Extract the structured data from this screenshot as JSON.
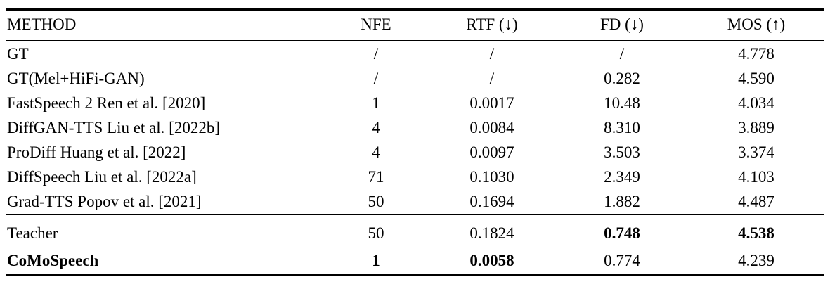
{
  "document": {
    "background_color": "#ffffff",
    "text_color": "#000000",
    "rule_color": "#000000"
  },
  "table": {
    "headers": [
      "METHOD",
      "NFE",
      "RTF (↓)",
      "FD (↓)",
      "MOS (↑)"
    ],
    "rows": [
      {
        "method": "GT",
        "nfe": "/",
        "rtf": "/",
        "fd": "/",
        "mos": "4.778",
        "bold": []
      },
      {
        "method": "GT(Mel+HiFi-GAN)",
        "nfe": "/",
        "rtf": "/",
        "fd": "0.282",
        "mos": "4.590",
        "bold": []
      },
      {
        "method": "FastSpeech 2 Ren et al. [2020]",
        "nfe": "1",
        "rtf": "0.0017",
        "fd": "10.48",
        "mos": "4.034",
        "bold": []
      },
      {
        "method": "DiffGAN-TTS Liu et al. [2022b]",
        "nfe": "4",
        "rtf": "0.0084",
        "fd": "8.310",
        "mos": "3.889",
        "bold": []
      },
      {
        "method": "ProDiff Huang et al. [2022]",
        "nfe": "4",
        "rtf": "0.0097",
        "fd": "3.503",
        "mos": "3.374",
        "bold": []
      },
      {
        "method": "DiffSpeech Liu et al. [2022a]",
        "nfe": "71",
        "rtf": "0.1030",
        "fd": "2.349",
        "mos": "4.103",
        "bold": []
      },
      {
        "method": "Grad-TTS Popov et al. [2021]",
        "nfe": "50",
        "rtf": "0.1694",
        "fd": "1.882",
        "mos": "4.487",
        "bold": []
      },
      {
        "method": "Teacher",
        "nfe": "50",
        "rtf": "0.1824",
        "fd": "0.748",
        "mos": "4.538",
        "bold": [
          "fd",
          "mos"
        ]
      },
      {
        "method": "CoMoSpeech",
        "nfe": "1",
        "rtf": "0.0058",
        "fd": "0.774",
        "mos": "4.239",
        "bold": [
          "method",
          "nfe",
          "rtf"
        ]
      }
    ]
  }
}
